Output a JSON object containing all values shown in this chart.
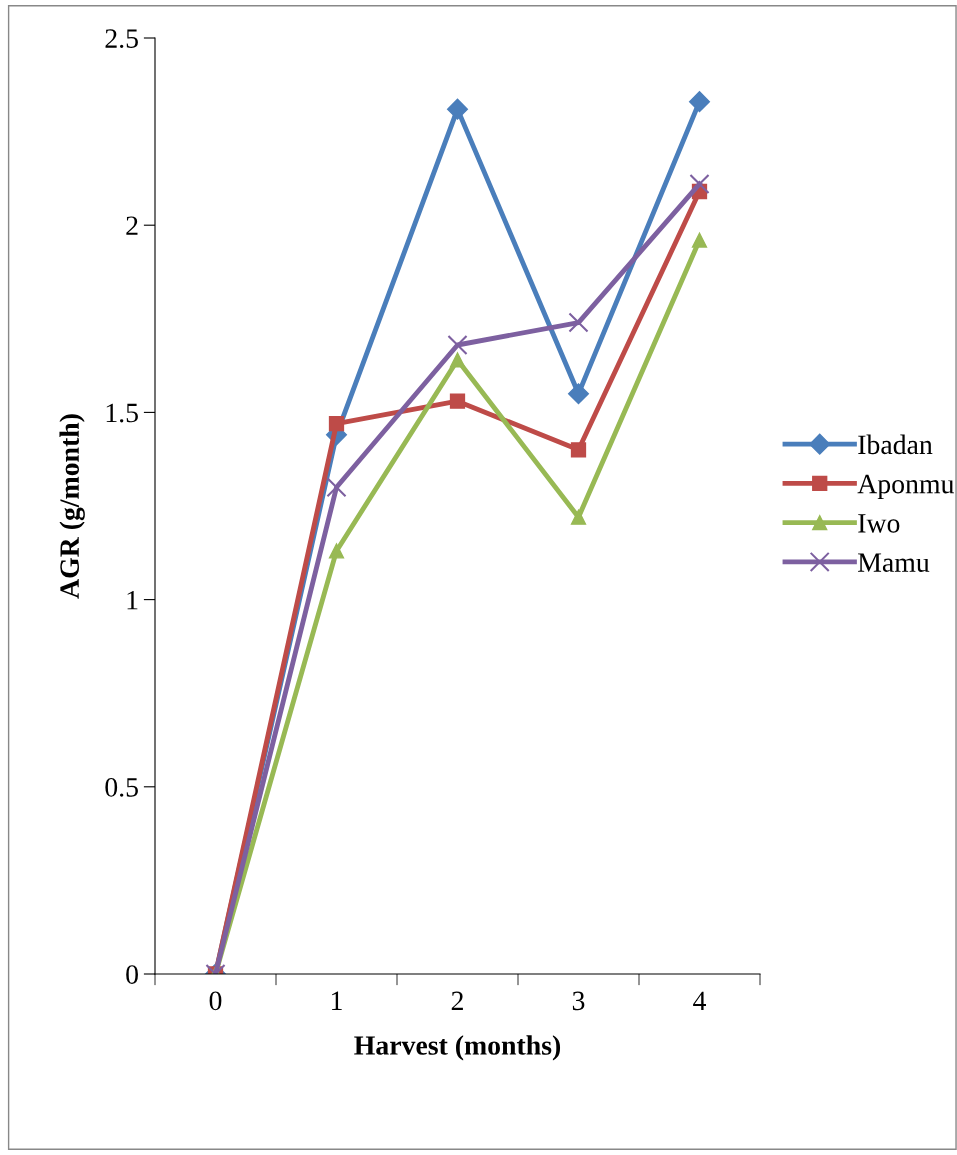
{
  "chart_data": {
    "type": "line",
    "xlabel": "Harvest (months)",
    "ylabel": "AGR (g/month)",
    "categories": [
      "0",
      "1",
      "2",
      "3",
      "4"
    ],
    "series": [
      {
        "name": "Ibadan",
        "color": "#4a7ebb",
        "marker": "diamond",
        "values": [
          0,
          1.44,
          2.31,
          1.55,
          2.33
        ]
      },
      {
        "name": "Aponmu",
        "color": "#be4b48",
        "marker": "square",
        "values": [
          0,
          1.47,
          1.53,
          1.4,
          2.09
        ]
      },
      {
        "name": "Iwo",
        "color": "#98b954",
        "marker": "triangle",
        "values": [
          0,
          1.13,
          1.64,
          1.22,
          1.96
        ]
      },
      {
        "name": "Mamu",
        "color": "#7d60a0",
        "marker": "cross",
        "values": [
          0,
          1.3,
          1.68,
          1.74,
          2.11
        ]
      }
    ],
    "ylim": [
      0,
      2.5
    ],
    "yticks": [
      0,
      0.5,
      1,
      1.5,
      2,
      2.5
    ],
    "grid": false,
    "legend": "right",
    "line_style": "solid"
  }
}
